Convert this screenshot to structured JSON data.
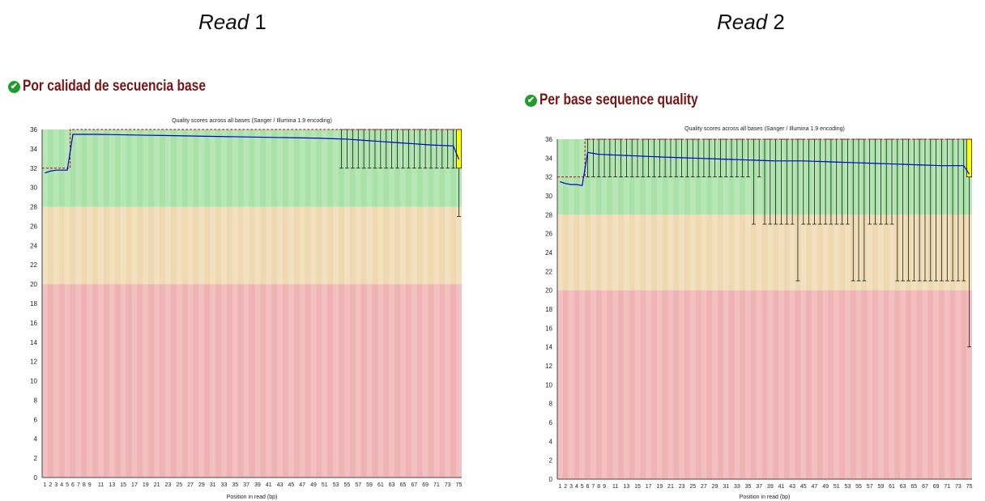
{
  "headers": {
    "read1": {
      "italic": "Read",
      "num": " 1"
    },
    "read2": {
      "italic": "Read",
      "num": " 2"
    }
  },
  "colors": {
    "good": "#a8e2a8",
    "warn": "#efd9b0",
    "bad": "#efb3b3",
    "mean": "#0000cc",
    "median": "#cc0000",
    "box": "#ffff00",
    "title": "#7a1414"
  },
  "charts": [
    {
      "module_title": "Por calidad de secuencia base",
      "icon": "check-circle-icon",
      "chart_data": {
        "type": "box",
        "title": "Quality scores across all bases (Sanger / Illumina 1.9 encoding)",
        "xlabel": "Position in read (bp)",
        "ylim": [
          0,
          36
        ],
        "yticks": [
          0,
          2,
          4,
          6,
          8,
          10,
          12,
          14,
          16,
          18,
          20,
          22,
          24,
          26,
          28,
          30,
          32,
          34,
          36
        ],
        "xtick_labels": [
          "1",
          "2",
          "3",
          "4",
          "5",
          "6",
          "7",
          "8",
          "9",
          "11",
          "13",
          "15",
          "17",
          "19",
          "21",
          "23",
          "25",
          "27",
          "29",
          "31",
          "33",
          "35",
          "37",
          "39",
          "41",
          "43",
          "45",
          "47",
          "49",
          "51",
          "53",
          "55",
          "57",
          "59",
          "61",
          "63",
          "65",
          "67",
          "69",
          "71",
          "73",
          "75"
        ],
        "bands": [
          {
            "from": 28,
            "to": 36,
            "zone": "good"
          },
          {
            "from": 20,
            "to": 28,
            "zone": "warn"
          },
          {
            "from": 0,
            "to": 20,
            "zone": "bad"
          }
        ],
        "mean": [
          [
            1,
            31.5
          ],
          [
            2,
            31.7
          ],
          [
            3,
            31.8
          ],
          [
            4,
            31.8
          ],
          [
            5,
            31.8
          ],
          [
            6,
            35.5
          ],
          [
            10,
            35.5
          ],
          [
            20,
            35.4
          ],
          [
            30,
            35.3
          ],
          [
            40,
            35.2
          ],
          [
            50,
            35.1
          ],
          [
            55,
            35.0
          ],
          [
            60,
            34.8
          ],
          [
            65,
            34.6
          ],
          [
            70,
            34.4
          ],
          [
            74,
            34.3
          ],
          [
            75,
            32.9
          ]
        ],
        "median": [
          [
            1,
            32
          ],
          [
            5,
            32
          ],
          [
            6,
            36
          ],
          [
            75,
            36
          ]
        ],
        "lower_whisker": [
          [
            54,
            32
          ],
          [
            74,
            32
          ],
          [
            75,
            27
          ]
        ],
        "box": {
          "pos": 75,
          "q1": 32,
          "q3": 36
        }
      }
    },
    {
      "module_title": "Per base sequence quality",
      "icon": "check-circle-icon",
      "chart_data": {
        "type": "box",
        "title": "Quality scores across all bases (Sanger / Illumina 1.9 encoding)",
        "xlabel": "Position in read (bp)",
        "ylim": [
          0,
          36
        ],
        "yticks": [
          0,
          2,
          4,
          6,
          8,
          10,
          12,
          14,
          16,
          18,
          20,
          22,
          24,
          26,
          28,
          30,
          32,
          34,
          36
        ],
        "xtick_labels": [
          "1",
          "2",
          "3",
          "4",
          "5",
          "6",
          "7",
          "8",
          "9",
          "11",
          "13",
          "15",
          "17",
          "19",
          "21",
          "23",
          "25",
          "27",
          "29",
          "31",
          "33",
          "35",
          "37",
          "39",
          "41",
          "43",
          "45",
          "47",
          "49",
          "51",
          "53",
          "55",
          "57",
          "59",
          "61",
          "63",
          "65",
          "67",
          "69",
          "71",
          "73",
          "75"
        ],
        "bands": [
          {
            "from": 28,
            "to": 36,
            "zone": "good"
          },
          {
            "from": 20,
            "to": 28,
            "zone": "warn"
          },
          {
            "from": 0,
            "to": 20,
            "zone": "bad"
          }
        ],
        "mean": [
          [
            1,
            31.5
          ],
          [
            2,
            31.3
          ],
          [
            3,
            31.2
          ],
          [
            4,
            31.2
          ],
          [
            5,
            31.1
          ],
          [
            6,
            34.6
          ],
          [
            8,
            34.4
          ],
          [
            12,
            34.3
          ],
          [
            20,
            34.1
          ],
          [
            30,
            33.9
          ],
          [
            40,
            33.7
          ],
          [
            45,
            33.7
          ],
          [
            50,
            33.6
          ],
          [
            55,
            33.5
          ],
          [
            60,
            33.4
          ],
          [
            65,
            33.3
          ],
          [
            70,
            33.2
          ],
          [
            74,
            33.2
          ],
          [
            75,
            32.3
          ]
        ],
        "median": [
          [
            1,
            32
          ],
          [
            5,
            32
          ],
          [
            6,
            36
          ],
          [
            75,
            36
          ]
        ],
        "lower_whisker": [
          [
            6,
            32
          ],
          [
            35,
            32
          ],
          [
            36,
            27
          ],
          [
            37,
            32
          ],
          [
            38,
            27
          ],
          [
            43,
            27
          ],
          [
            44,
            21
          ],
          [
            45,
            27
          ],
          [
            53,
            27
          ],
          [
            54,
            21
          ],
          [
            56,
            21
          ],
          [
            57,
            27
          ],
          [
            61,
            27
          ],
          [
            62,
            21
          ],
          [
            74,
            21
          ],
          [
            75,
            14
          ]
        ],
        "box": {
          "pos": 75,
          "q1": 32,
          "q3": 36
        }
      }
    }
  ]
}
